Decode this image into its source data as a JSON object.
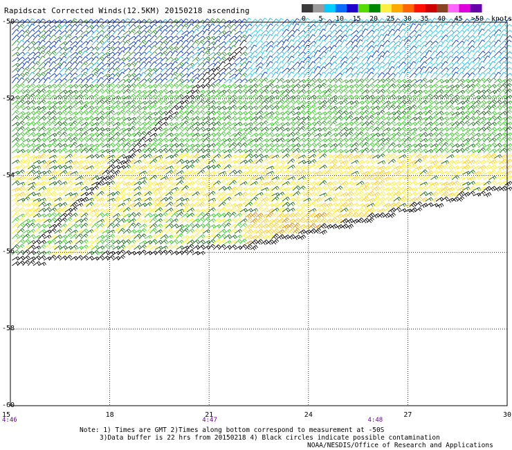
{
  "title": "Rapidscat Corrected Winds(12.5KM) 20150218 ascending",
  "legend": {
    "unit": "knots",
    "labels": [
      "0",
      "5",
      "10",
      "15",
      "20",
      "25",
      "30",
      "35",
      "40",
      "45",
      ">50"
    ],
    "colors": [
      "#3a3a3a",
      "#9b9b9b",
      "#00ccff",
      "#0a6bff",
      "#1f00cc",
      "#55dd00",
      "#008800",
      "#ffee44",
      "#ffaa00",
      "#ff6600",
      "#ff1100",
      "#cc0000",
      "#884422",
      "#ff66ff",
      "#dd00dd",
      "#6600aa"
    ]
  },
  "notes": {
    "line1": "Note: 1) Times are GMT 2)Times along bottom correspond to measurement at -50S",
    "line2": "3)Data buffer is 22 hrs from 20150218 4) Black circles indicate possible contamination"
  },
  "credit": "NOAA/NESDIS/Office of Research and Applications",
  "times": [
    {
      "label": "4:46",
      "lon": 15
    },
    {
      "label": "4:47",
      "lon": 21
    },
    {
      "label": "4:48",
      "lon": 26
    }
  ],
  "chart_data": {
    "type": "scatter",
    "title": "Rapidscat Corrected Winds(12.5KM) 20150218 ascending",
    "xlabel": "",
    "ylabel": "",
    "xlim": [
      15,
      30
    ],
    "ylim": [
      -60,
      -50
    ],
    "x_ticks": [
      "15",
      "18",
      "21",
      "24",
      "27",
      "30"
    ],
    "x_tick_values": [
      15,
      18,
      21,
      24,
      27,
      30
    ],
    "y_ticks": [
      "-50",
      "-52",
      "-54",
      "-56",
      "-58",
      "-60"
    ],
    "y_tick_values": [
      -50,
      -52,
      -54,
      -56,
      -58,
      -60
    ],
    "grid": true,
    "swath": {
      "edge_north_south": [
        [
          15,
          -56.4
        ],
        [
          22,
          -50.6
        ],
        [
          30,
          -50
        ]
      ],
      "edge_south": [
        [
          15,
          -56.4
        ],
        [
          22,
          -56.0
        ],
        [
          30,
          -54.4
        ]
      ]
    },
    "wind_regions": [
      {
        "lat_range": [
          -51.6,
          -50.0
        ],
        "lon_range": [
          15,
          22
        ],
        "speed_kts": 12,
        "dir_deg": 45
      },
      {
        "lat_range": [
          -51.5,
          -50.0
        ],
        "lon_range": [
          22,
          30
        ],
        "speed_kts": 9,
        "dir_deg": 50
      },
      {
        "lat_range": [
          -53.5,
          -51.6
        ],
        "lon_range": [
          15,
          30
        ],
        "speed_kts": 18,
        "dir_deg": 40
      },
      {
        "lat_range": [
          -55.0,
          -53.5
        ],
        "lon_range": [
          15,
          24
        ],
        "speed_kts": 22,
        "dir_deg": 35
      },
      {
        "lat_range": [
          -55.0,
          -53.5
        ],
        "lon_range": [
          24,
          30
        ],
        "speed_kts": 23,
        "dir_deg": 35
      },
      {
        "lat_range": [
          -56.4,
          -55.0
        ],
        "lon_range": [
          15,
          22
        ],
        "speed_kts": 20,
        "dir_deg": 40
      },
      {
        "lat_range": [
          -56.0,
          -54.9
        ],
        "lon_range": [
          22,
          28
        ],
        "speed_kts": 26,
        "dir_deg": 40
      }
    ]
  }
}
